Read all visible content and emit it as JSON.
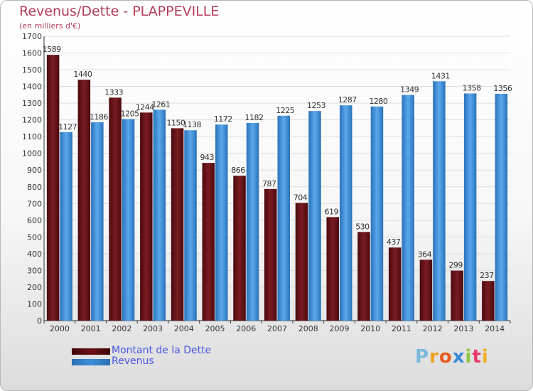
{
  "header": {
    "title": "Revenus/Dette - PLAPPEVILLE",
    "subtitle": "(en milliers d'€)"
  },
  "legend": {
    "items": [
      {
        "label": "Montant de la Dette",
        "color": "#6b1015"
      },
      {
        "label": "Revenus",
        "color": "#3d8fda"
      }
    ]
  },
  "logo": {
    "letters": [
      "P",
      "r",
      "o",
      "x",
      "i",
      "t",
      "i"
    ],
    "colors": [
      "#7ab8dc",
      "#f0a020",
      "#e85a20",
      "#3a8ad8",
      "#8cc83c",
      "#e83a6a",
      "#f0b020"
    ]
  },
  "chart_data": {
    "type": "bar",
    "title": "Revenus/Dette - PLAPPEVILLE",
    "subtitle": "(en milliers d'€)",
    "categories": [
      "2000",
      "2001",
      "2002",
      "2003",
      "2004",
      "2005",
      "2006",
      "2007",
      "2008",
      "2009",
      "2010",
      "2011",
      "2012",
      "2013",
      "2014"
    ],
    "series": [
      {
        "name": "Montant de la Dette",
        "color": "#6b1015",
        "values": [
          1589,
          1440,
          1333,
          1244,
          1150,
          943,
          866,
          787,
          704,
          619,
          530,
          437,
          364,
          299,
          237
        ],
        "labels": [
          "1589",
          "1440",
          "1333",
          "1244",
          "1150",
          "943",
          "866",
          "787",
          "704",
          "619",
          "530",
          "437",
          "364",
          "299",
          "237"
        ]
      },
      {
        "name": "Revenus",
        "color": "#3d8fda",
        "values": [
          1127,
          1186,
          1205,
          1261,
          1138,
          1172,
          1182,
          1225,
          1253,
          1287,
          1280,
          1349,
          1431,
          1358,
          1356
        ],
        "labels": [
          "1127",
          "1186",
          "1205",
          "1261",
          "1138",
          "1172",
          "1182",
          "1225",
          "1253",
          "1287",
          "1280",
          "1349",
          "1431",
          "1358",
          "1356"
        ]
      }
    ],
    "ylim": [
      0,
      1700
    ],
    "yticks": [
      "0",
      "100",
      "200",
      "300",
      "400",
      "500",
      "600",
      "700",
      "800",
      "900",
      "1000",
      "1100",
      "1200",
      "1300",
      "1400",
      "1500",
      "1600",
      "1700"
    ],
    "grid": true,
    "legend_position": "bottom-left"
  }
}
